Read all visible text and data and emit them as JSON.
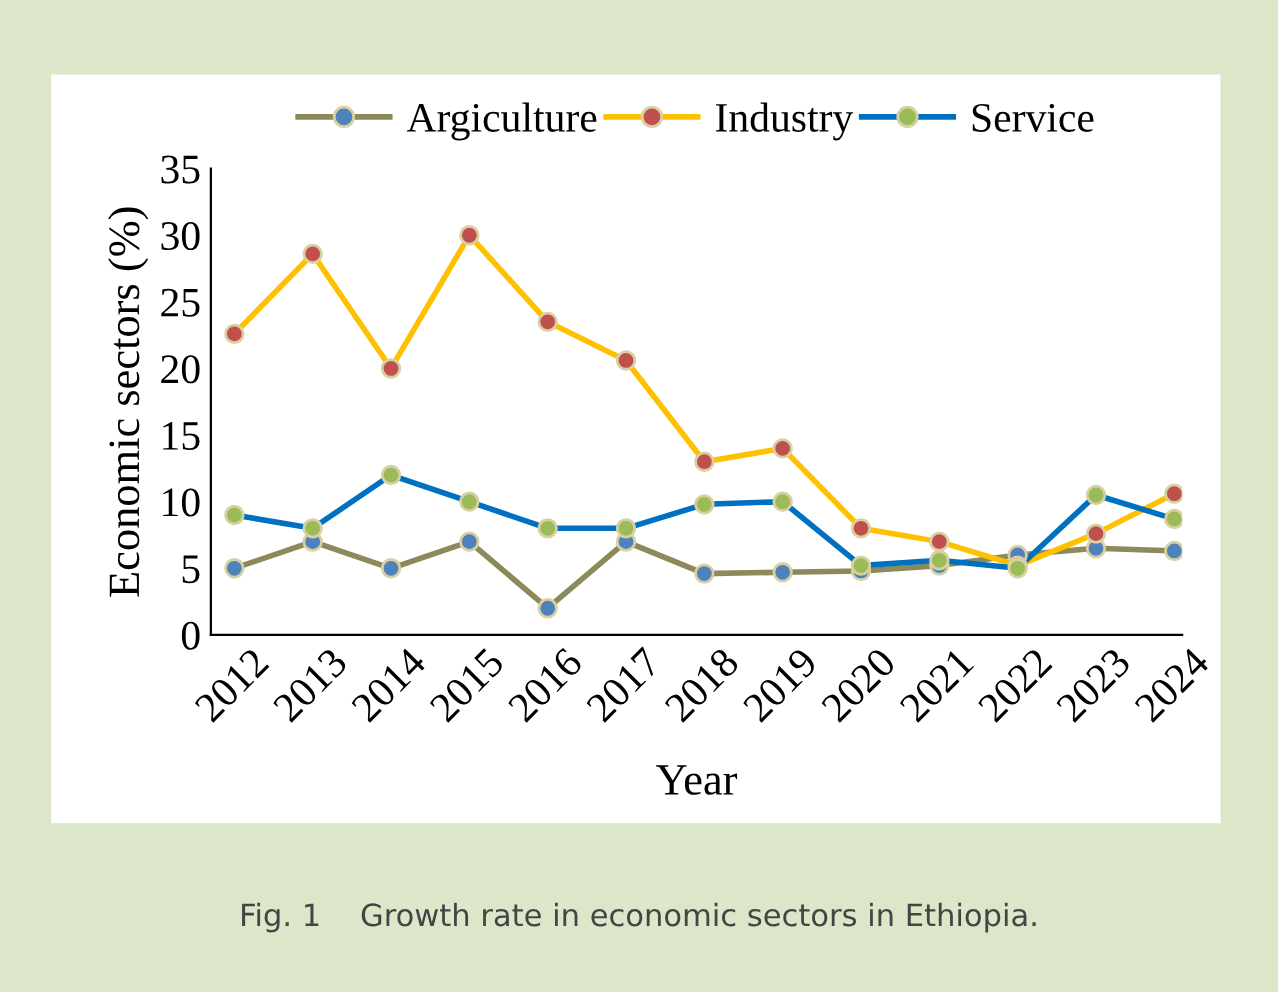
{
  "chart_data": {
    "type": "line",
    "xlabel": "Year",
    "ylabel": "Economic sectors (%)",
    "categories": [
      "2012",
      "2013",
      "2014",
      "2015",
      "2016",
      "2017",
      "2018",
      "2019",
      "2020",
      "2021",
      "2022",
      "2023",
      "2024"
    ],
    "series": [
      {
        "name": "Argiculture",
        "color": "#8c8a5a",
        "colors": [
          "#4f81bd",
          "#4f81bd",
          "#4f81bd",
          "#4f81bd",
          "#4f81bd",
          "#4f81bd",
          "#4f81bd",
          "#4f81bd",
          "#4f81bd",
          "#4f81bd",
          "#4f81bd",
          "#4f81bd",
          "#4f81bd"
        ],
        "values": [
          5,
          7,
          5,
          7,
          2,
          7,
          4.6,
          4.7,
          4.8,
          5.2,
          6,
          6.5,
          6.3
        ]
      },
      {
        "name": "Industry",
        "color": "#ffc000",
        "colors": [
          "#c0504d",
          "#c0504d",
          "#c0504d",
          "#c0504d",
          "#c0504d",
          "#c0504d",
          "#c0504d",
          "#c0504d",
          "#c0504d",
          "#c0504d",
          "#c0504d",
          "#c0504d",
          "#c0504d"
        ],
        "values": [
          22.6,
          28.6,
          20,
          30,
          23.5,
          20.6,
          13,
          14,
          8,
          7,
          5.2,
          7.6,
          10.6
        ]
      },
      {
        "name": "Service",
        "color": "#0070c0",
        "colors": [
          "#9bbb59",
          "#9bbb59",
          "#9bbb59",
          "#9bbb59",
          "#9bbb59",
          "#9bbb59",
          "#9bbb59",
          "#9bbb59",
          "#9bbb59",
          "#9bbb59",
          "#9bbb59",
          "#9bbb59",
          "#9bbb59"
        ],
        "values": [
          9,
          8,
          12,
          10,
          8,
          8,
          9.8,
          10,
          5.2,
          5.6,
          5,
          10.5,
          8.7
        ]
      }
    ],
    "ylim": [
      0,
      35
    ],
    "yticks": [
      0,
      5,
      10,
      15,
      20,
      25,
      30,
      35
    ],
    "grid": false,
    "legend": "top",
    "marker": "circle",
    "line_style": "solid",
    "annotations": [
      "Fig. 1    Growth rate in economic sectors in Ethiopia."
    ]
  }
}
